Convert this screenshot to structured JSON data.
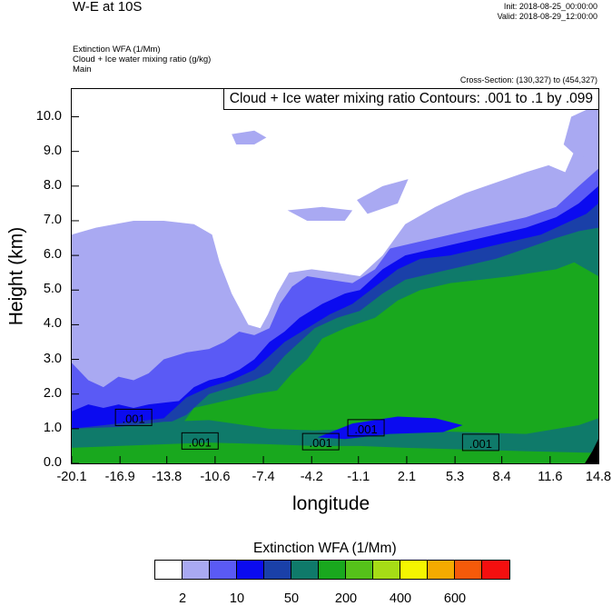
{
  "header": {
    "title": "W-E at 10S",
    "init": "Init: 2018-08-25_00:00:00",
    "valid": "Valid: 2018-08-29_12:00:00",
    "subtitle_lines": [
      "Extinction WFA   (1/Mm)",
      "Cloud + Ice water mixing ratio   (g/kg)",
      "Main"
    ],
    "cross_section": "Cross-Section: (130,327) to (454,327)",
    "contour_note": "Cloud + Ice water mixing ratio Contours: .001 to .1 by .099"
  },
  "chart_data": {
    "type": "heatmap",
    "title": "W-E at 10S",
    "xlabel": "longitude",
    "ylabel": "Height (km)",
    "x_ticks": [
      "-20.1",
      "-16.9",
      "-13.8",
      "-10.6",
      "-7.4",
      "-4.2",
      "-1.1",
      "2.1",
      "5.3",
      "8.4",
      "11.6",
      "14.8"
    ],
    "xlim": [
      -20.1,
      14.8
    ],
    "y_ticks": [
      "0.0",
      "1.0",
      "2.0",
      "3.0",
      "4.0",
      "5.0",
      "6.0",
      "7.0",
      "8.0",
      "9.0",
      "10.0"
    ],
    "ylim": [
      0,
      10.8
    ],
    "colorbar": {
      "title": "Extinction WFA  (1/Mm)",
      "colors": [
        "#ffffff",
        "#a9a9f2",
        "#5a5af5",
        "#0b0bf0",
        "#1a40a8",
        "#0f7a6a",
        "#19a81e",
        "#55c21a",
        "#a6dc16",
        "#f5f500",
        "#f5aa00",
        "#f55a0a",
        "#f50f0f"
      ],
      "labels": [
        "2",
        "10",
        "50",
        "200",
        "400",
        "600"
      ],
      "label_swatch_index": [
        1,
        3,
        5,
        7,
        9,
        11
      ]
    },
    "contour_labels": [
      {
        "text": ".001",
        "x": -16.0,
        "y": 1.3
      },
      {
        "text": ".001",
        "x": -11.6,
        "y": 0.62
      },
      {
        "text": ".001",
        "x": -3.6,
        "y": 0.6
      },
      {
        "text": ".001",
        "x": -0.6,
        "y": 1.0
      },
      {
        "text": ".001",
        "x": 7.0,
        "y": 0.58
      }
    ],
    "layers": [
      {
        "color": "#5a5af5",
        "top": [
          [
            -20.1,
            2.9
          ],
          [
            -19.0,
            2.4
          ],
          [
            -18.0,
            2.2
          ],
          [
            -17.0,
            2.5
          ],
          [
            -16.0,
            2.4
          ],
          [
            -15.0,
            2.6
          ],
          [
            -14.0,
            3.0
          ],
          [
            -12.5,
            3.2
          ],
          [
            -11.0,
            3.3
          ],
          [
            -10.0,
            3.5
          ],
          [
            -9.0,
            3.8
          ],
          [
            -8.0,
            3.7
          ],
          [
            -7.0,
            3.9
          ],
          [
            -6.3,
            4.6
          ],
          [
            -5.5,
            5.1
          ],
          [
            -4.5,
            5.4
          ],
          [
            -3.0,
            5.3
          ],
          [
            -1.5,
            5.2
          ],
          [
            0.0,
            5.6
          ],
          [
            1.0,
            6.2
          ],
          [
            2.0,
            6.3
          ],
          [
            4.0,
            6.5
          ],
          [
            6.0,
            6.7
          ],
          [
            8.0,
            6.9
          ],
          [
            10.0,
            7.1
          ],
          [
            12.0,
            7.4
          ],
          [
            13.5,
            8.0
          ],
          [
            14.8,
            8.5
          ]
        ]
      },
      {
        "color": "#0b0bf0",
        "top": [
          [
            -20.1,
            1.5
          ],
          [
            -19.0,
            1.7
          ],
          [
            -18.0,
            1.6
          ],
          [
            -17.0,
            1.7
          ],
          [
            -16.0,
            1.6
          ],
          [
            -15.0,
            1.7
          ],
          [
            -13.0,
            1.8
          ],
          [
            -12.0,
            2.2
          ],
          [
            -11.0,
            2.4
          ],
          [
            -10.0,
            2.5
          ],
          [
            -9.0,
            2.7
          ],
          [
            -8.0,
            3.0
          ],
          [
            -7.0,
            3.5
          ],
          [
            -6.0,
            3.8
          ],
          [
            -5.0,
            4.2
          ],
          [
            -3.5,
            4.6
          ],
          [
            -2.0,
            4.9
          ],
          [
            -1.0,
            5.0
          ],
          [
            0.5,
            5.6
          ],
          [
            2.0,
            6.0
          ],
          [
            4.0,
            6.2
          ],
          [
            6.0,
            6.4
          ],
          [
            8.0,
            6.6
          ],
          [
            10.0,
            6.8
          ],
          [
            12.0,
            7.1
          ],
          [
            13.5,
            7.5
          ],
          [
            14.8,
            8.0
          ]
        ]
      },
      {
        "color": "#1a40a8",
        "top": [
          [
            -20.1,
            1.0
          ],
          [
            -18.0,
            1.1
          ],
          [
            -16.0,
            1.2
          ],
          [
            -14.0,
            1.3
          ],
          [
            -12.5,
            1.9
          ],
          [
            -11.0,
            2.2
          ],
          [
            -9.5,
            2.4
          ],
          [
            -8.0,
            2.7
          ],
          [
            -7.0,
            3.1
          ],
          [
            -6.0,
            3.5
          ],
          [
            -4.5,
            3.9
          ],
          [
            -3.0,
            4.3
          ],
          [
            -1.5,
            4.6
          ],
          [
            0.0,
            5.1
          ],
          [
            1.5,
            5.6
          ],
          [
            3.0,
            5.9
          ],
          [
            5.0,
            6.0
          ],
          [
            7.0,
            6.2
          ],
          [
            9.0,
            6.4
          ],
          [
            11.0,
            6.6
          ],
          [
            12.5,
            6.9
          ],
          [
            14.0,
            7.2
          ],
          [
            14.8,
            7.5
          ]
        ]
      },
      {
        "color": "#0f7a6a",
        "top": [
          [
            -20.1,
            0.8
          ],
          [
            -18.0,
            0.9
          ],
          [
            -16.0,
            1.0
          ],
          [
            -14.0,
            1.1
          ],
          [
            -12.5,
            1.4
          ],
          [
            -11.0,
            2.0
          ],
          [
            -9.5,
            2.2
          ],
          [
            -8.0,
            2.4
          ],
          [
            -7.0,
            2.6
          ],
          [
            -6.0,
            3.1
          ],
          [
            -5.0,
            3.5
          ],
          [
            -4.0,
            3.9
          ],
          [
            -2.5,
            4.2
          ],
          [
            -1.0,
            4.4
          ],
          [
            0.5,
            4.9
          ],
          [
            2.0,
            5.3
          ],
          [
            4.0,
            5.5
          ],
          [
            6.0,
            5.7
          ],
          [
            8.0,
            5.9
          ],
          [
            10.0,
            6.2
          ],
          [
            12.0,
            6.5
          ],
          [
            13.5,
            6.7
          ],
          [
            14.8,
            6.8
          ]
        ]
      },
      {
        "color": "#19a81e",
        "top": [
          [
            -20.1,
            0.7
          ],
          [
            -15.0,
            0.8
          ],
          [
            -13.0,
            1.0
          ],
          [
            -12.0,
            1.6
          ],
          [
            -10.0,
            1.8
          ],
          [
            -8.0,
            2.0
          ],
          [
            -6.5,
            2.1
          ],
          [
            -5.5,
            2.6
          ],
          [
            -4.5,
            3.0
          ],
          [
            -3.5,
            3.6
          ],
          [
            -2.0,
            3.9
          ],
          [
            0.0,
            4.2
          ],
          [
            1.5,
            4.7
          ],
          [
            3.0,
            5.0
          ],
          [
            5.0,
            5.2
          ],
          [
            7.0,
            5.3
          ],
          [
            9.0,
            5.4
          ],
          [
            10.5,
            5.5
          ],
          [
            12.0,
            5.6
          ],
          [
            13.2,
            5.8
          ],
          [
            14.0,
            5.6
          ],
          [
            14.8,
            5.4
          ]
        ]
      },
      {
        "color": "#55c21a",
        "top": [
          [
            -20.1,
            0.0
          ],
          [
            -15.0,
            0.0
          ],
          [
            -10.0,
            0.0
          ],
          [
            14.8,
            0.0
          ]
        ]
      }
    ]
  }
}
